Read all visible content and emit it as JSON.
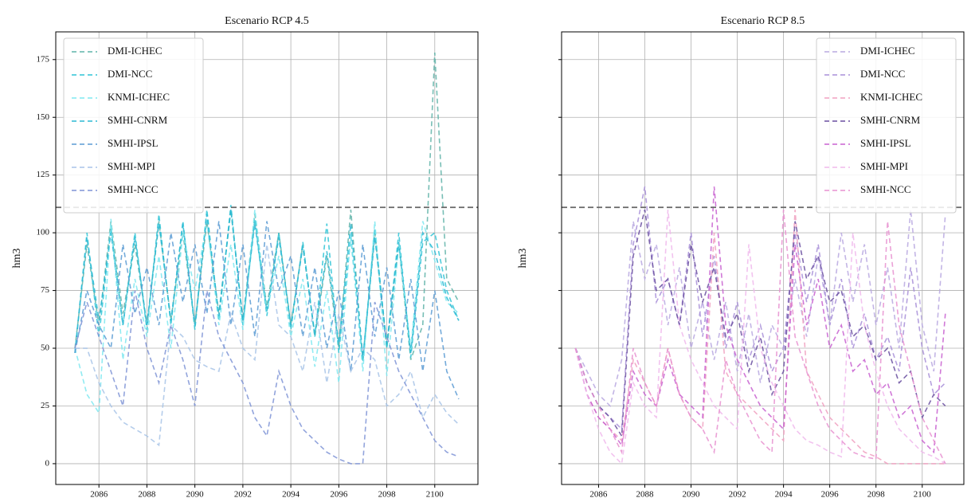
{
  "chart_data": [
    {
      "type": "line",
      "title": "Escenario RCP 4.5",
      "ylabel": "hm3",
      "grid": true,
      "legend": "upper left",
      "ytick_labels": true,
      "hline": 111,
      "x": [
        2085,
        2085.5,
        2086,
        2086.5,
        2087,
        2087.5,
        2088,
        2088.5,
        2089,
        2089.5,
        2090,
        2090.5,
        2091,
        2091.5,
        2092,
        2092.5,
        2093,
        2093.5,
        2094,
        2094.5,
        2095,
        2095.5,
        2096,
        2096.5,
        2097,
        2097.5,
        2098,
        2098.5,
        2099,
        2099.5,
        2100,
        2100.5,
        2101
      ],
      "xlim": [
        2084.2,
        2101.8
      ],
      "xticks": [
        2086,
        2088,
        2090,
        2092,
        2094,
        2096,
        2098,
        2100
      ],
      "ylim": [
        -9,
        187
      ],
      "yticks": [
        0,
        25,
        50,
        75,
        100,
        125,
        150,
        175
      ],
      "series": [
        {
          "name": "DMI-ICHEC",
          "color": "#5fb3a8",
          "values": [
            50,
            95,
            60,
            105,
            65,
            95,
            60,
            105,
            62,
            100,
            60,
            105,
            65,
            110,
            62,
            108,
            68,
            100,
            60,
            95,
            55,
            90,
            50,
            110,
            45,
            100,
            50,
            95,
            45,
            60,
            178,
            80,
            70
          ]
        },
        {
          "name": "DMI-NCC",
          "color": "#2ec4d6",
          "values": [
            48,
            100,
            55,
            102,
            60,
            100,
            58,
            108,
            60,
            105,
            58,
            110,
            62,
            112,
            60,
            106,
            64,
            100,
            58,
            96,
            55,
            104,
            48,
            98,
            44,
            102,
            50,
            100,
            46,
            96,
            100,
            75,
            62
          ]
        },
        {
          "name": "KNMI-ICHEC",
          "color": "#7ee8f0",
          "values": [
            50,
            30,
            22,
            106,
            45,
            80,
            55,
            90,
            50,
            100,
            75,
            105,
            60,
            95,
            58,
            110,
            66,
            90,
            55,
            80,
            42,
            75,
            35,
            100,
            40,
            105,
            38,
            95,
            50,
            105,
            88,
            70,
            65
          ]
        },
        {
          "name": "SMHI-CNRM",
          "color": "#2bb8d4",
          "values": [
            48,
            98,
            62,
            100,
            60,
            98,
            60,
            104,
            62,
            104,
            60,
            108,
            64,
            110,
            62,
            104,
            66,
            98,
            60,
            94,
            56,
            92,
            52,
            104,
            46,
            98,
            52,
            96,
            48,
            100,
            92,
            72,
            62
          ]
        },
        {
          "name": "SMHI-IPSL",
          "color": "#5a9bd4",
          "values": [
            48,
            75,
            60,
            50,
            95,
            65,
            85,
            60,
            100,
            70,
            95,
            65,
            105,
            60,
            95,
            55,
            105,
            75,
            90,
            55,
            85,
            50,
            75,
            40,
            95,
            55,
            85,
            45,
            80,
            40,
            75,
            40,
            28
          ]
        },
        {
          "name": "SMHI-MPI",
          "color": "#a8c4e8",
          "values": [
            50,
            50,
            35,
            25,
            18,
            15,
            12,
            8,
            60,
            55,
            45,
            42,
            40,
            65,
            50,
            45,
            95,
            60,
            55,
            40,
            70,
            35,
            65,
            40,
            50,
            45,
            25,
            30,
            40,
            20,
            30,
            22,
            17
          ]
        },
        {
          "name": "SMHI-NCC",
          "color": "#7f94d6",
          "values": [
            50,
            70,
            55,
            40,
            25,
            75,
            50,
            35,
            60,
            45,
            25,
            75,
            55,
            45,
            35,
            20,
            12,
            40,
            25,
            15,
            10,
            5,
            2,
            0,
            0,
            70,
            55,
            40,
            30,
            20,
            10,
            5,
            3
          ]
        }
      ]
    },
    {
      "type": "line",
      "title": "Escenario RCP 8.5",
      "ylabel": "hm3",
      "grid": true,
      "legend": "upper right",
      "ytick_labels": false,
      "hline": 111,
      "x": [
        2085,
        2085.5,
        2086,
        2086.5,
        2087,
        2087.5,
        2088,
        2088.5,
        2089,
        2089.5,
        2090,
        2090.5,
        2091,
        2091.5,
        2092,
        2092.5,
        2093,
        2093.5,
        2094,
        2094.5,
        2095,
        2095.5,
        2096,
        2096.5,
        2097,
        2097.5,
        2098,
        2098.5,
        2099,
        2099.5,
        2100,
        2100.5,
        2101
      ],
      "xlim": [
        2084.4,
        2101.8
      ],
      "xticks": [
        2086,
        2088,
        2090,
        2092,
        2094,
        2096,
        2098,
        2100
      ],
      "ylim": [
        -9,
        187
      ],
      "yticks": [
        0,
        25,
        50,
        75,
        100,
        125,
        150,
        175
      ],
      "series": [
        {
          "name": "DMI-ICHEC",
          "color": "#b8a8e0",
          "values": [
            50,
            40,
            30,
            25,
            45,
            105,
            80,
            95,
            60,
            85,
            50,
            70,
            45,
            70,
            40,
            65,
            35,
            60,
            50,
            80,
            55,
            90,
            60,
            100,
            70,
            95,
            60,
            85,
            50,
            110,
            60,
            40,
            108
          ]
        },
        {
          "name": "DMI-NCC",
          "color": "#a88fd8",
          "values": [
            50,
            35,
            25,
            20,
            15,
            95,
            120,
            70,
            80,
            60,
            100,
            55,
            90,
            50,
            70,
            45,
            60,
            40,
            50,
            100,
            70,
            95,
            60,
            80,
            50,
            65,
            45,
            55,
            40,
            85,
            50,
            30,
            35
          ]
        },
        {
          "name": "KNMI-ICHEC",
          "color": "#f0a0c0",
          "values": [
            50,
            30,
            20,
            15,
            10,
            45,
            35,
            25,
            50,
            30,
            20,
            15,
            100,
            40,
            30,
            25,
            20,
            15,
            10,
            110,
            40,
            30,
            20,
            15,
            10,
            5,
            3,
            0,
            0,
            0,
            0,
            0,
            0
          ]
        },
        {
          "name": "SMHI-CNRM",
          "color": "#6a4fa0",
          "values": [
            50,
            35,
            25,
            20,
            12,
            90,
            110,
            75,
            80,
            60,
            95,
            70,
            85,
            55,
            65,
            40,
            55,
            30,
            40,
            105,
            80,
            90,
            70,
            75,
            55,
            60,
            45,
            50,
            35,
            40,
            20,
            30,
            25
          ]
        },
        {
          "name": "SMHI-IPSL",
          "color": "#c860d0",
          "values": [
            50,
            30,
            20,
            15,
            8,
            40,
            30,
            25,
            45,
            30,
            25,
            20,
            120,
            60,
            45,
            35,
            25,
            20,
            15,
            95,
            60,
            80,
            50,
            60,
            40,
            45,
            30,
            35,
            20,
            25,
            10,
            5,
            65
          ]
        },
        {
          "name": "SMHI-MPI",
          "color": "#f0b8ec",
          "values": [
            50,
            30,
            15,
            5,
            0,
            35,
            25,
            20,
            110,
            60,
            45,
            35,
            25,
            20,
            15,
            95,
            50,
            35,
            25,
            15,
            10,
            8,
            5,
            3,
            100,
            60,
            40,
            25,
            15,
            10,
            5,
            3,
            0
          ]
        },
        {
          "name": "SMHI-NCC",
          "color": "#e890d0",
          "values": [
            50,
            35,
            25,
            15,
            5,
            50,
            35,
            25,
            50,
            30,
            20,
            15,
            5,
            45,
            30,
            20,
            10,
            5,
            110,
            55,
            40,
            25,
            15,
            10,
            5,
            3,
            2,
            105,
            60,
            40,
            20,
            10,
            0
          ]
        }
      ]
    }
  ]
}
